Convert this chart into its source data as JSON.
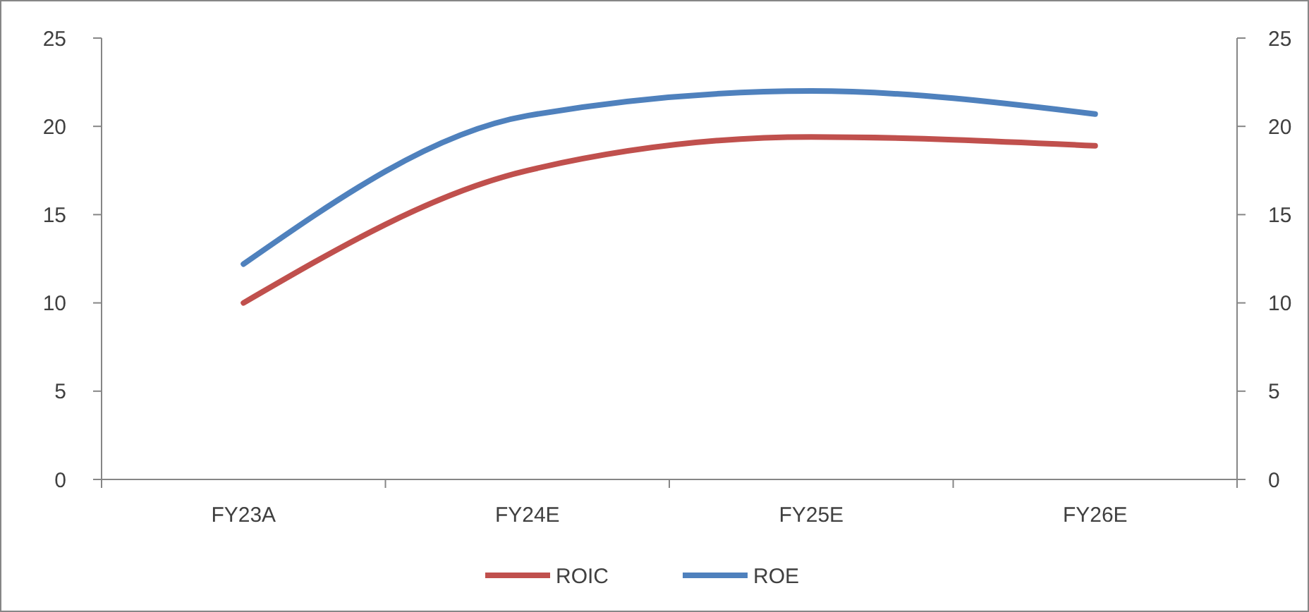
{
  "chart_data": {
    "type": "line",
    "categories": [
      "FY23A",
      "FY24E",
      "FY25E",
      "FY26E"
    ],
    "series": [
      {
        "name": "ROIC",
        "color": "#c0504d",
        "values": [
          10.0,
          17.5,
          19.4,
          18.9
        ]
      },
      {
        "name": "ROE",
        "color": "#4f81bd",
        "values": [
          12.2,
          20.6,
          22.0,
          20.7
        ]
      }
    ],
    "ylim": [
      0,
      25
    ],
    "yticks": [
      0,
      5,
      10,
      15,
      20,
      25
    ],
    "y2lim": [
      0,
      25
    ],
    "y2ticks": [
      0,
      5,
      10,
      15,
      20,
      25
    ],
    "grid": false,
    "legend": "bottom",
    "marker": "none",
    "line_style": "solid"
  }
}
